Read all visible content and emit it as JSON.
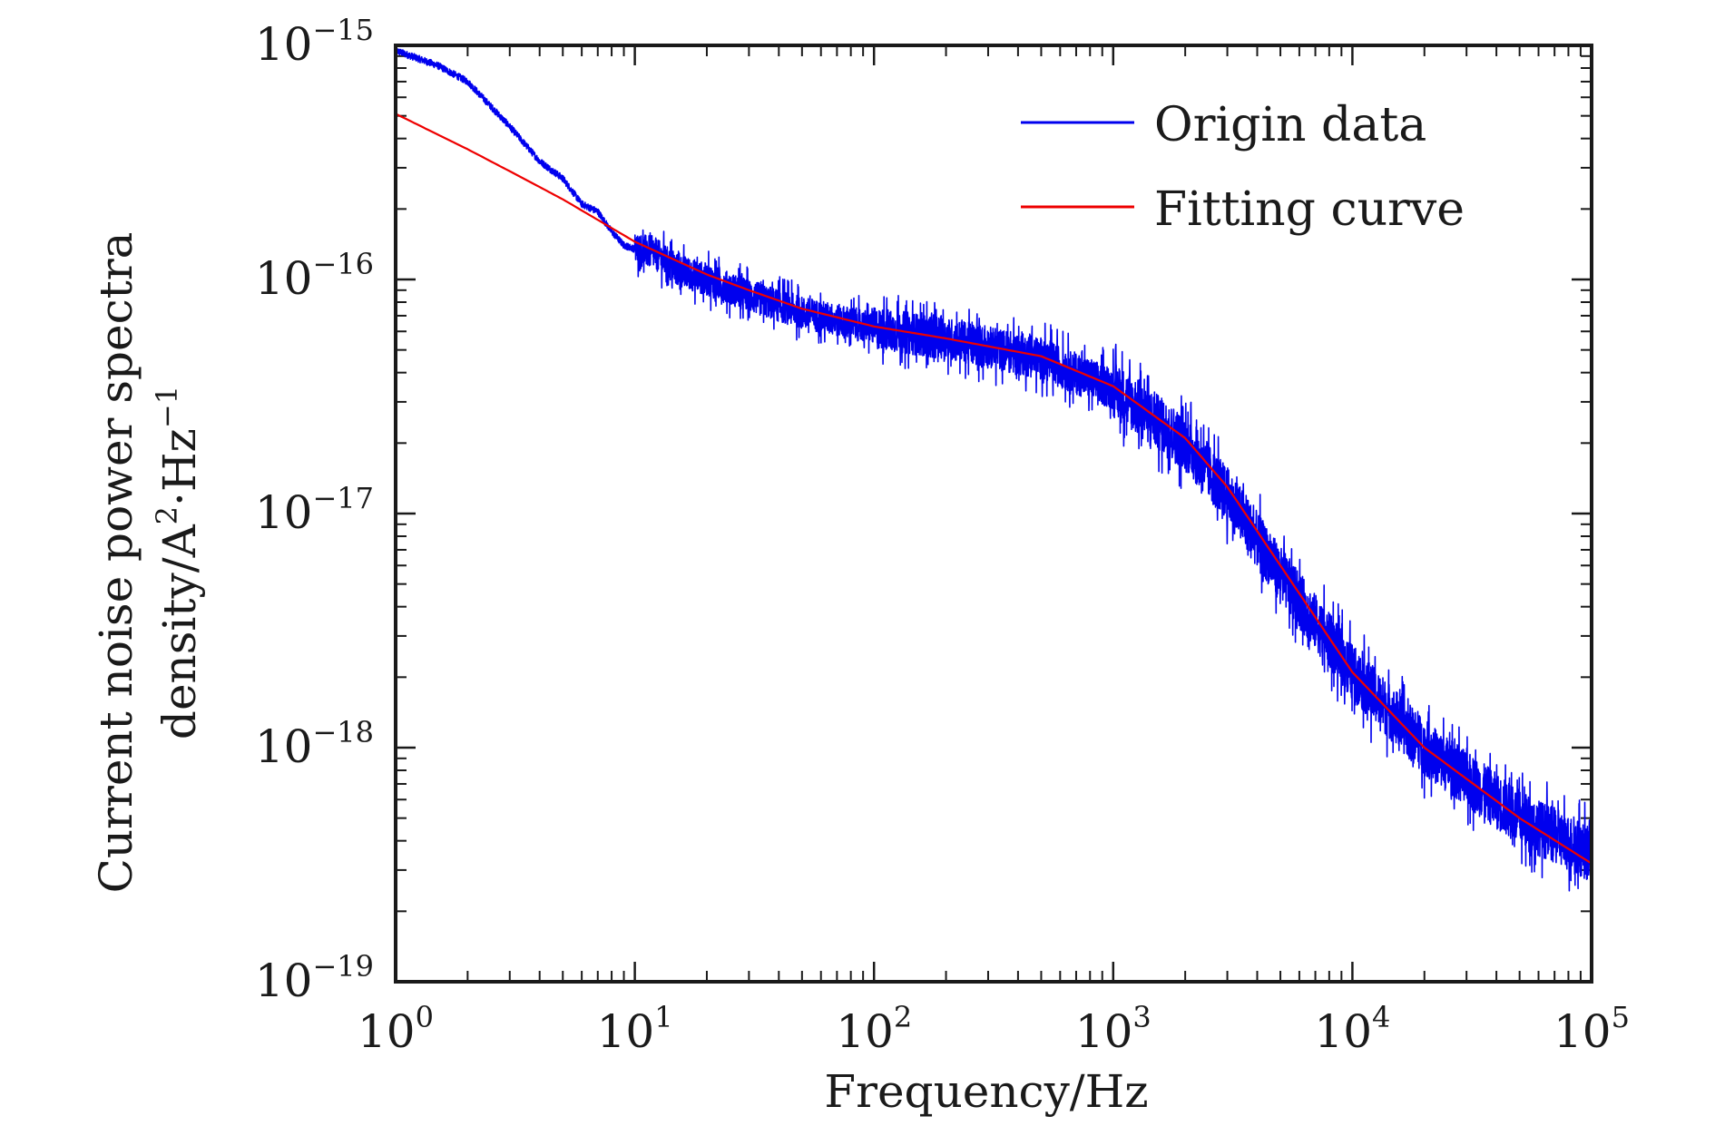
{
  "chart_data": {
    "type": "line",
    "title": "",
    "xlabel": "Frequency/Hz",
    "ylabel_line1": "Current noise power spectra",
    "ylabel_line2_base": "density/A",
    "ylabel_line2_sup1": "2",
    "ylabel_line2_mid": "·Hz",
    "ylabel_line2_sup2": "−1",
    "x_scale": "log",
    "y_scale": "log",
    "xlim": [
      1,
      100000
    ],
    "ylim": [
      1e-19,
      1e-15
    ],
    "grid": false,
    "legend_position": "top-right",
    "x_ticks": [
      {
        "base": "10",
        "exp": "0",
        "value": 1
      },
      {
        "base": "10",
        "exp": "1",
        "value": 10
      },
      {
        "base": "10",
        "exp": "2",
        "value": 100
      },
      {
        "base": "10",
        "exp": "3",
        "value": 1000
      },
      {
        "base": "10",
        "exp": "4",
        "value": 10000
      },
      {
        "base": "10",
        "exp": "5",
        "value": 100000
      }
    ],
    "y_ticks": [
      {
        "base": "10",
        "exp": "−15",
        "value": 1e-15
      },
      {
        "base": "10",
        "exp": "−16",
        "value": 1e-16
      },
      {
        "base": "10",
        "exp": "−17",
        "value": 1e-17
      },
      {
        "base": "10",
        "exp": "−18",
        "value": 1e-18
      },
      {
        "base": "10",
        "exp": "−19",
        "value": 1e-19
      }
    ],
    "series": [
      {
        "name": "Origin data",
        "color": "#0000ee",
        "style": "noisy",
        "x": [
          1,
          1.5,
          2,
          3,
          4,
          5,
          6,
          7,
          8,
          9,
          10,
          12,
          15,
          20,
          30,
          50,
          100,
          200,
          500,
          1000,
          2000,
          3000,
          5000,
          10000,
          20000,
          50000,
          100000
        ],
        "y": [
          9.5e-16,
          8.2e-16,
          7e-16,
          4.5e-16,
          3.2e-16,
          2.7e-16,
          2.1e-16,
          1.95e-16,
          1.6e-16,
          1.4e-16,
          1.35e-16,
          1.3e-16,
          1.1e-16,
          1e-16,
          8.5e-17,
          7.2e-17,
          6.2e-17,
          5.6e-17,
          4.6e-17,
          3.4e-17,
          2e-17,
          1.2e-17,
          5.5e-18,
          2.1e-18,
          1e-18,
          5e-19,
          3.5e-19
        ]
      },
      {
        "name": "Fitting curve",
        "color": "#ee0000",
        "style": "smooth",
        "x": [
          1,
          2,
          3,
          5,
          10,
          20,
          30,
          50,
          100,
          200,
          500,
          1000,
          2000,
          3000,
          5000,
          10000,
          20000,
          50000,
          100000
        ],
        "y": [
          5.1e-16,
          3.6e-16,
          2.9e-16,
          2.2e-16,
          1.45e-16,
          1.05e-16,
          9e-17,
          7.5e-17,
          6.3e-17,
          5.6e-17,
          4.7e-17,
          3.5e-17,
          2.1e-17,
          1.3e-17,
          6e-18,
          2.1e-18,
          1e-18,
          5e-19,
          3.2e-19
        ]
      }
    ]
  }
}
